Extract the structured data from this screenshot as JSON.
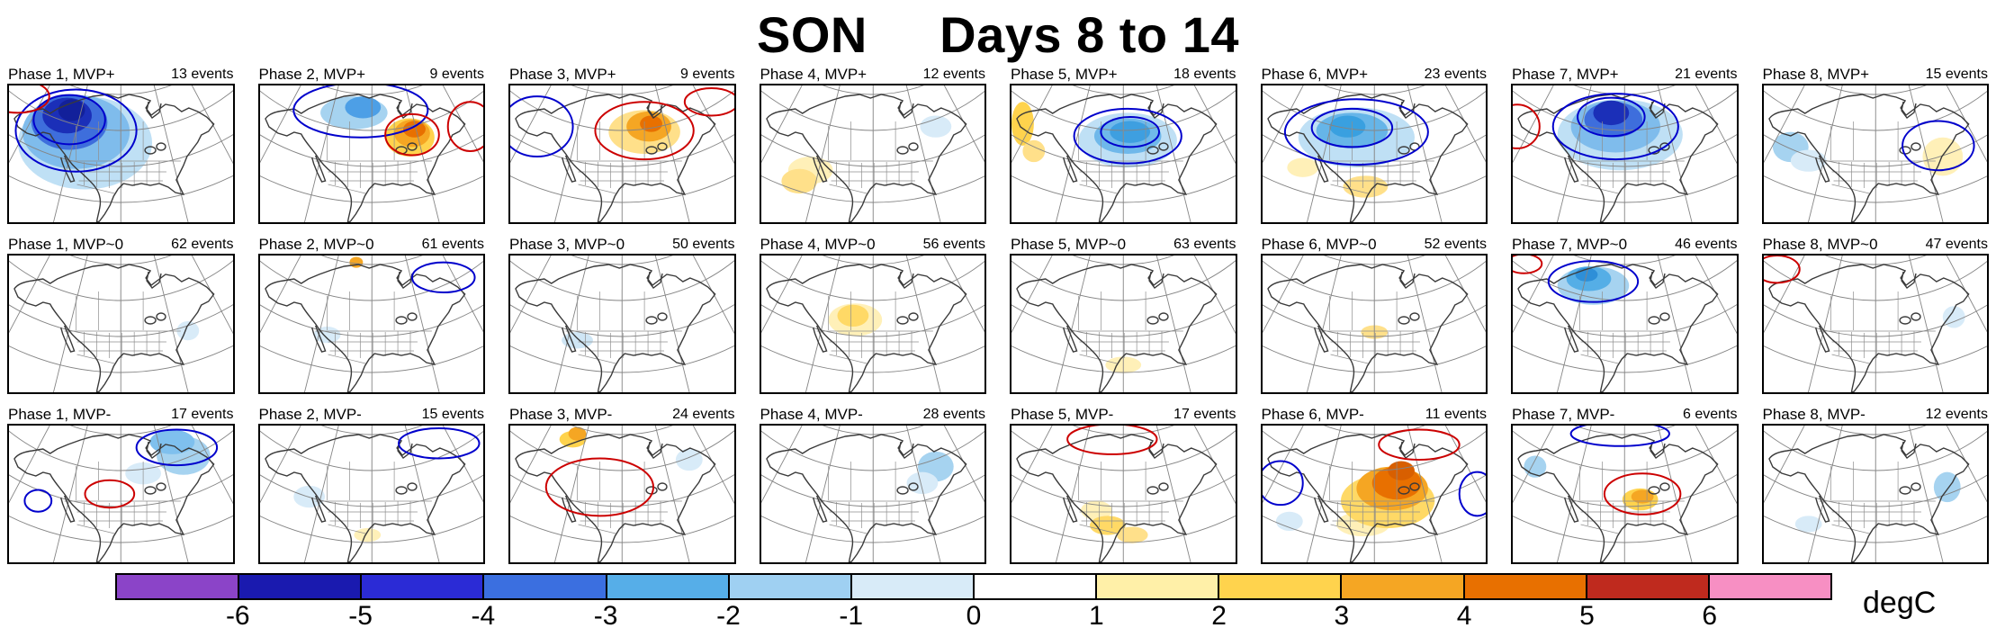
{
  "title": "SON     Days 8 to 14",
  "colorbar": {
    "units": "degC",
    "ticks": [
      "-6",
      "-5",
      "-4",
      "-3",
      "-2",
      "-1",
      "0",
      "1",
      "2",
      "3",
      "4",
      "5",
      "6"
    ],
    "colors": [
      "#8B44C8",
      "#1A1AAF",
      "#2B2BD6",
      "#3B6FE0",
      "#56AEE8",
      "#9FD0F2",
      "#D8EBF8",
      "#FFFFFF",
      "#FFF0A8",
      "#FFD34D",
      "#F5A623",
      "#E87000",
      "#BF2A1E",
      "#F78FC3"
    ]
  },
  "chart_data": {
    "type": "heatmap",
    "title": "SON     Days 8 to 14",
    "rows": [
      "MVP+",
      "MVP~0",
      "MVP-"
    ],
    "columns": [
      "Phase 1",
      "Phase 2",
      "Phase 3",
      "Phase 4",
      "Phase 5",
      "Phase 6",
      "Phase 7",
      "Phase 8"
    ],
    "events_per_panel": [
      [
        13,
        9,
        9,
        12,
        18,
        23,
        21,
        15
      ],
      [
        62,
        61,
        50,
        56,
        63,
        52,
        46,
        47
      ],
      [
        17,
        15,
        24,
        28,
        17,
        11,
        6,
        12
      ]
    ],
    "colorbar_label": "degC",
    "colorbar_ticks": [
      -6,
      -5,
      -4,
      -3,
      -2,
      -1,
      0,
      1,
      2,
      3,
      4,
      5,
      6
    ],
    "legend_position": "bottom"
  },
  "panels": [
    {
      "label": "Phase 1, MVP+",
      "events": "13 events",
      "blobs": [
        [
          "#BFE0F5",
          0.34,
          0.42,
          0.3,
          0.34
        ],
        [
          "#7FBCEC",
          0.3,
          0.34,
          0.24,
          0.27
        ],
        [
          "#3E6EDC",
          0.27,
          0.27,
          0.17,
          0.2
        ],
        [
          "#1B2FB8",
          0.26,
          0.22,
          0.11,
          0.13
        ],
        [
          "#12209A",
          0.28,
          0.18,
          0.06,
          0.08
        ]
      ],
      "contours": [
        [
          "#0000CC",
          0.3,
          0.33,
          0.27,
          0.3
        ],
        [
          "#0000CC",
          0.27,
          0.25,
          0.16,
          0.18
        ],
        [
          "#CC0000",
          0.04,
          0.08,
          0.14,
          0.12
        ]
      ]
    },
    {
      "label": "Phase 2, MVP+",
      "events": "9 events",
      "blobs": [
        [
          "#A6D3F0",
          0.42,
          0.2,
          0.15,
          0.12
        ],
        [
          "#4D9FE6",
          0.46,
          0.16,
          0.08,
          0.08
        ],
        [
          "#FFD34D",
          0.67,
          0.38,
          0.11,
          0.14
        ],
        [
          "#F5A623",
          0.68,
          0.35,
          0.08,
          0.1
        ],
        [
          "#E87000",
          0.69,
          0.32,
          0.05,
          0.06
        ]
      ],
      "contours": [
        [
          "#0000CC",
          0.45,
          0.18,
          0.3,
          0.2
        ],
        [
          "#CC0000",
          0.68,
          0.36,
          0.12,
          0.15
        ],
        [
          "#CC0000",
          0.94,
          0.3,
          0.1,
          0.18
        ]
      ]
    },
    {
      "label": "Phase 3, MVP+",
      "events": "9 events",
      "blobs": [
        [
          "#FFE08A",
          0.6,
          0.34,
          0.16,
          0.16
        ],
        [
          "#F5A623",
          0.62,
          0.3,
          0.1,
          0.11
        ],
        [
          "#E87000",
          0.63,
          0.28,
          0.05,
          0.06
        ]
      ],
      "contours": [
        [
          "#CC0000",
          0.6,
          0.33,
          0.22,
          0.21
        ],
        [
          "#0000CC",
          0.12,
          0.3,
          0.16,
          0.22
        ],
        [
          "#CC0000",
          0.9,
          0.12,
          0.12,
          0.1
        ]
      ]
    },
    {
      "label": "Phase 4, MVP+",
      "events": "12 events",
      "blobs": [
        [
          "#FFF0B8",
          0.22,
          0.62,
          0.1,
          0.1
        ],
        [
          "#FFE08A",
          0.17,
          0.7,
          0.08,
          0.09
        ],
        [
          "#D8EBF8",
          0.78,
          0.3,
          0.07,
          0.08
        ]
      ],
      "contours": []
    },
    {
      "label": "Phase 5, MVP+",
      "events": "18 events",
      "blobs": [
        [
          "#BFE0F5",
          0.52,
          0.4,
          0.22,
          0.2
        ],
        [
          "#6FB8EA",
          0.52,
          0.37,
          0.15,
          0.13
        ],
        [
          "#3E9FE0",
          0.53,
          0.34,
          0.09,
          0.08
        ],
        [
          "#FFD34D",
          0.05,
          0.28,
          0.05,
          0.16
        ],
        [
          "#FFE08A",
          0.1,
          0.48,
          0.05,
          0.08
        ]
      ],
      "contours": [
        [
          "#0000CC",
          0.52,
          0.37,
          0.24,
          0.2
        ],
        [
          "#0000CC",
          0.53,
          0.34,
          0.13,
          0.11
        ]
      ]
    },
    {
      "label": "Phase 6, MVP+",
      "events": "23 events",
      "blobs": [
        [
          "#BFE0F5",
          0.42,
          0.38,
          0.26,
          0.22
        ],
        [
          "#66B5E8",
          0.4,
          0.33,
          0.16,
          0.13
        ],
        [
          "#39A0E0",
          0.38,
          0.3,
          0.08,
          0.08
        ],
        [
          "#FFE08A",
          0.46,
          0.74,
          0.1,
          0.08
        ],
        [
          "#FFF0B8",
          0.18,
          0.6,
          0.07,
          0.07
        ]
      ],
      "contours": [
        [
          "#0000CC",
          0.42,
          0.34,
          0.32,
          0.24
        ],
        [
          "#0000CC",
          0.4,
          0.31,
          0.18,
          0.14
        ]
      ]
    },
    {
      "label": "Phase 7, MVP+",
      "events": "21 events",
      "blobs": [
        [
          "#BFE0F5",
          0.48,
          0.36,
          0.28,
          0.26
        ],
        [
          "#7FBCEC",
          0.46,
          0.3,
          0.2,
          0.19
        ],
        [
          "#3E6EDC",
          0.45,
          0.25,
          0.13,
          0.13
        ],
        [
          "#1B2FB8",
          0.44,
          0.2,
          0.08,
          0.09
        ]
      ],
      "contours": [
        [
          "#0000CC",
          0.46,
          0.3,
          0.28,
          0.24
        ],
        [
          "#0000CC",
          0.44,
          0.23,
          0.15,
          0.14
        ],
        [
          "#CC0000",
          0.02,
          0.3,
          0.1,
          0.16
        ]
      ]
    },
    {
      "label": "Phase 8, MVP+",
      "events": "15 events",
      "blobs": [
        [
          "#A6D3F0",
          0.12,
          0.45,
          0.08,
          0.11
        ],
        [
          "#D8EBF8",
          0.2,
          0.55,
          0.08,
          0.08
        ],
        [
          "#FFF0B8",
          0.8,
          0.52,
          0.09,
          0.14
        ]
      ],
      "contours": [
        [
          "#0000CC",
          0.78,
          0.44,
          0.16,
          0.18
        ]
      ]
    },
    {
      "label": "Phase 1, MVP~0",
      "events": "62 events",
      "blobs": [
        [
          "#D8EBF8",
          0.8,
          0.55,
          0.05,
          0.07
        ]
      ],
      "contours": []
    },
    {
      "label": "Phase 2, MVP~0",
      "events": "61 events",
      "blobs": [
        [
          "#F5A623",
          0.43,
          0.05,
          0.03,
          0.04
        ],
        [
          "#D8EBF8",
          0.3,
          0.58,
          0.06,
          0.06
        ]
      ],
      "contours": [
        [
          "#0000CC",
          0.82,
          0.16,
          0.14,
          0.11
        ]
      ]
    },
    {
      "label": "Phase 3, MVP~0",
      "events": "50 events",
      "blobs": [
        [
          "#CFE6F5",
          0.3,
          0.62,
          0.07,
          0.06
        ]
      ],
      "contours": []
    },
    {
      "label": "Phase 4, MVP~0",
      "events": "56 events",
      "blobs": [
        [
          "#FFF0B8",
          0.42,
          0.47,
          0.12,
          0.12
        ],
        [
          "#FFD966",
          0.41,
          0.44,
          0.07,
          0.08
        ]
      ],
      "contours": []
    },
    {
      "label": "Phase 5, MVP~0",
      "events": "63 events",
      "blobs": [
        [
          "#FFF0B8",
          0.5,
          0.8,
          0.08,
          0.06
        ]
      ],
      "contours": []
    },
    {
      "label": "Phase 6, MVP~0",
      "events": "52 events",
      "blobs": [
        [
          "#FFE08A",
          0.5,
          0.56,
          0.06,
          0.05
        ]
      ],
      "contours": []
    },
    {
      "label": "Phase 7, MVP~0",
      "events": "46 events",
      "blobs": [
        [
          "#A6D3F0",
          0.36,
          0.22,
          0.16,
          0.14
        ],
        [
          "#55AEE6",
          0.34,
          0.17,
          0.1,
          0.09
        ],
        [
          "#2E8FD8",
          0.33,
          0.14,
          0.05,
          0.05
        ]
      ],
      "contours": [
        [
          "#0000CC",
          0.36,
          0.19,
          0.2,
          0.15
        ],
        [
          "#CC0000",
          0.05,
          0.06,
          0.08,
          0.07
        ]
      ]
    },
    {
      "label": "Phase 8, MVP~0",
      "events": "47 events",
      "blobs": [
        [
          "#D8EBF8",
          0.85,
          0.45,
          0.05,
          0.08
        ]
      ],
      "contours": [
        [
          "#CC0000",
          0.06,
          0.1,
          0.1,
          0.1
        ]
      ]
    },
    {
      "label": "Phase 1, MVP-",
      "events": "17 events",
      "blobs": [
        [
          "#A6D3F0",
          0.78,
          0.22,
          0.12,
          0.14
        ],
        [
          "#7FC0EE",
          0.73,
          0.12,
          0.1,
          0.09
        ],
        [
          "#D8EBF8",
          0.6,
          0.35,
          0.08,
          0.08
        ]
      ],
      "contours": [
        [
          "#0000CC",
          0.75,
          0.16,
          0.18,
          0.13
        ],
        [
          "#0000CC",
          0.13,
          0.55,
          0.06,
          0.08
        ],
        [
          "#CC0000",
          0.45,
          0.5,
          0.11,
          0.1
        ]
      ]
    },
    {
      "label": "Phase 2, MVP-",
      "events": "15 events",
      "blobs": [
        [
          "#D8EBF8",
          0.22,
          0.52,
          0.07,
          0.08
        ],
        [
          "#FFF0B8",
          0.48,
          0.8,
          0.06,
          0.05
        ]
      ],
      "contours": [
        [
          "#0000CC",
          0.8,
          0.13,
          0.18,
          0.11
        ]
      ]
    },
    {
      "label": "Phase 3, MVP-",
      "events": "24 events",
      "blobs": [
        [
          "#FFD34D",
          0.28,
          0.1,
          0.06,
          0.06
        ],
        [
          "#F5A623",
          0.3,
          0.06,
          0.04,
          0.05
        ],
        [
          "#D8EBF8",
          0.8,
          0.25,
          0.06,
          0.08
        ]
      ],
      "contours": [
        [
          "#CC0000",
          0.4,
          0.45,
          0.24,
          0.21
        ]
      ]
    },
    {
      "label": "Phase 4, MVP-",
      "events": "28 events",
      "blobs": [
        [
          "#A6D3F0",
          0.78,
          0.3,
          0.08,
          0.11
        ],
        [
          "#D8EBF8",
          0.72,
          0.42,
          0.07,
          0.08
        ]
      ],
      "contours": []
    },
    {
      "label": "Phase 5, MVP-",
      "events": "17 events",
      "blobs": [
        [
          "#FFF0B8",
          0.38,
          0.62,
          0.07,
          0.07
        ],
        [
          "#FFD966",
          0.43,
          0.73,
          0.08,
          0.07
        ],
        [
          "#FFE08A",
          0.54,
          0.8,
          0.07,
          0.06
        ]
      ],
      "contours": [
        [
          "#CC0000",
          0.45,
          0.1,
          0.2,
          0.11
        ]
      ]
    },
    {
      "label": "Phase 6, MVP-",
      "events": "11 events",
      "blobs": [
        [
          "#FFF0B8",
          0.45,
          0.72,
          0.12,
          0.09
        ],
        [
          "#FFD966",
          0.56,
          0.55,
          0.21,
          0.2
        ],
        [
          "#F5A623",
          0.58,
          0.46,
          0.16,
          0.16
        ],
        [
          "#E87000",
          0.6,
          0.42,
          0.11,
          0.12
        ],
        [
          "#D85F00",
          0.62,
          0.33,
          0.06,
          0.07
        ],
        [
          "#D8EBF8",
          0.12,
          0.7,
          0.06,
          0.07
        ]
      ],
      "contours": [
        [
          "#CC0000",
          0.7,
          0.14,
          0.18,
          0.11
        ],
        [
          "#0000CC",
          0.08,
          0.42,
          0.1,
          0.16
        ],
        [
          "#0000CC",
          0.96,
          0.5,
          0.08,
          0.16
        ]
      ]
    },
    {
      "label": "Phase 7, MVP-",
      "events": "6 events",
      "blobs": [
        [
          "#FFD34D",
          0.57,
          0.54,
          0.08,
          0.08
        ],
        [
          "#F5A623",
          0.58,
          0.52,
          0.05,
          0.05
        ],
        [
          "#A6D3F0",
          0.1,
          0.3,
          0.05,
          0.08
        ]
      ],
      "contours": [
        [
          "#CC0000",
          0.58,
          0.5,
          0.17,
          0.15
        ],
        [
          "#0000CC",
          0.48,
          0.06,
          0.22,
          0.09
        ]
      ]
    },
    {
      "label": "Phase 8, MVP-",
      "events": "12 events",
      "blobs": [
        [
          "#A6D3F0",
          0.82,
          0.45,
          0.06,
          0.11
        ],
        [
          "#D8EBF8",
          0.2,
          0.72,
          0.06,
          0.06
        ]
      ],
      "contours": []
    }
  ]
}
